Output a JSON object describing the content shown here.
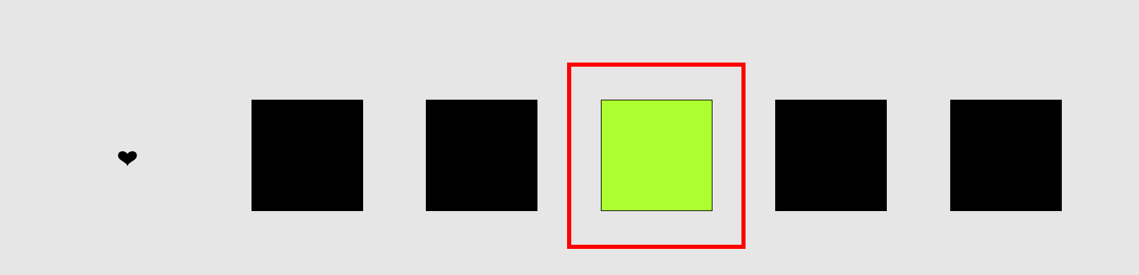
{
  "colors": {
    "background": "#e6e6e6",
    "tile_default": "#000000",
    "tile_highlight": "#adff2f",
    "selection_frame": "#ff0000",
    "heart": "#000000"
  },
  "icon": "heart-icon",
  "tiles": [
    {
      "state": "dark"
    },
    {
      "state": "dark"
    },
    {
      "state": "lit"
    },
    {
      "state": "dark"
    },
    {
      "state": "dark"
    }
  ],
  "selected_index": 2
}
